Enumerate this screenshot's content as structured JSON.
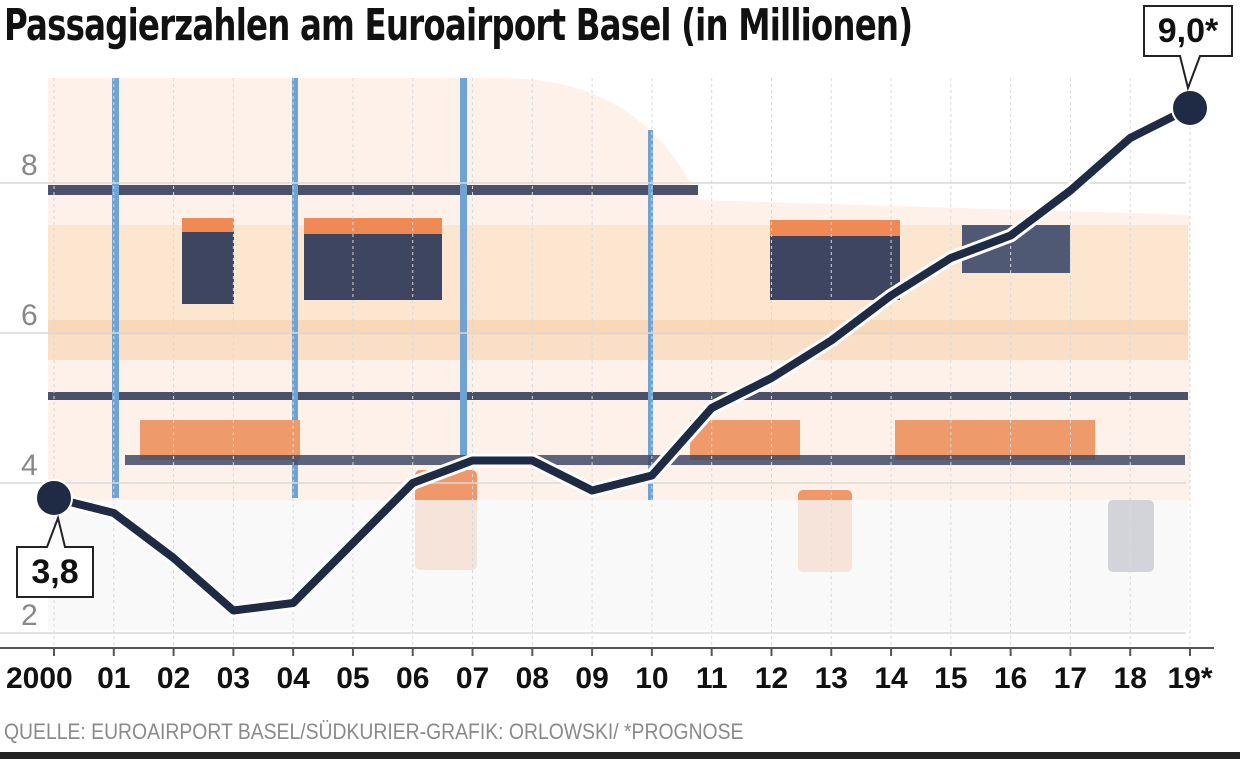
{
  "title": "Passagierzahlen am Euroairport Basel (in Millionen)",
  "source": "QUELLE: EUROAIRPORT BASEL/SÜDKURIER-GRAFIK: ORLOWSKI/ *PROGNOSE",
  "colors": {
    "line": "#1f2a44",
    "axis": "#555555",
    "grid": "#d9d9d9",
    "tick_text": "#888888",
    "background_accent": "#f0a06e"
  },
  "chart_data": {
    "type": "line",
    "title": "Passagierzahlen am Euroairport Basel (in Millionen)",
    "xlabel": "",
    "ylabel": "",
    "categories": [
      "2000",
      "01",
      "02",
      "03",
      "04",
      "05",
      "06",
      "07",
      "08",
      "09",
      "10",
      "11",
      "12",
      "13",
      "14",
      "15",
      "16",
      "17",
      "18",
      "19*"
    ],
    "x_tick_labels": [
      "2000",
      "01",
      "02",
      "03",
      "04",
      "05",
      "06",
      "07",
      "08",
      "09",
      "10",
      "11",
      "12",
      "13",
      "14",
      "15",
      "16",
      "17",
      "18",
      "19*"
    ],
    "series": [
      {
        "values": [
          3.8,
          3.6,
          3.0,
          2.3,
          2.4,
          3.2,
          4.0,
          4.3,
          4.3,
          3.9,
          4.1,
          5.0,
          5.4,
          5.9,
          6.5,
          7.0,
          7.3,
          7.9,
          8.6,
          9.0
        ]
      }
    ],
    "y_ticks": [
      2,
      4,
      6,
      8
    ],
    "y_tick_labels": [
      "2",
      "4",
      "6",
      "8"
    ],
    "ylim": [
      1.8,
      9.5
    ],
    "grid": true,
    "annotations": [
      {
        "category": "2000",
        "label": "3,8"
      },
      {
        "category": "19*",
        "label": "9,0*"
      }
    ]
  }
}
